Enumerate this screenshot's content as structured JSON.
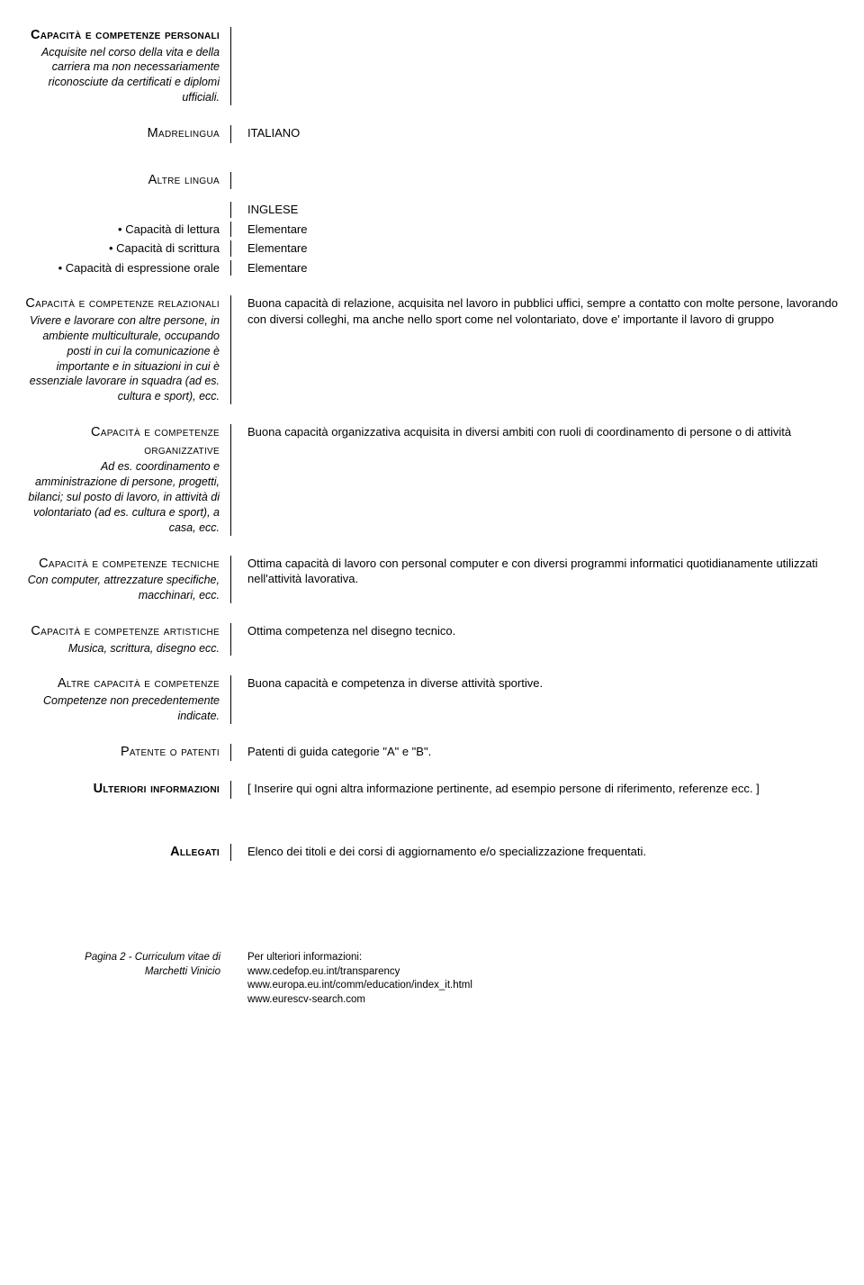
{
  "personal_skills": {
    "title": "Capacità e competenze personali",
    "desc": "Acquisite nel corso della vita e della carriera ma non necessariamente riconosciute da certificati e diplomi ufficiali."
  },
  "mother_tongue": {
    "label": "Madrelingua",
    "value": "ITALIANO"
  },
  "other_languages": {
    "label": "Altre lingua",
    "lang_name": "INGLESE",
    "reading_label": "• Capacità di lettura",
    "reading_value": "Elementare",
    "writing_label": "• Capacità di scrittura",
    "writing_value": "Elementare",
    "speaking_label": "• Capacità di espressione orale",
    "speaking_value": "Elementare"
  },
  "relational": {
    "title": "Capacità e competenze relazionali",
    "desc": "Vivere e lavorare con altre persone, in ambiente multiculturale, occupando posti in cui la comunicazione è importante e in situazioni in cui è essenziale lavorare in squadra (ad es. cultura e sport), ecc.",
    "value": "Buona capacità di relazione, acquisita nel lavoro in pubblici uffici, sempre a  contatto con molte persone, lavorando con diversi colleghi, ma anche nello sport come  nel volontariato, dove e' importante il lavoro di gruppo"
  },
  "organizational": {
    "title": "Capacità e competenze organizzative",
    "desc": "Ad es. coordinamento e amministrazione di persone, progetti, bilanci; sul posto di lavoro, in attività di volontariato (ad es. cultura e sport), a casa, ecc.",
    "value": "Buona capacità organizzativa acquisita in diversi ambiti con ruoli di coordinamento di persone o di attività"
  },
  "technical": {
    "title": "Capacità e competenze tecniche",
    "desc": "Con computer, attrezzature specifiche, macchinari, ecc.",
    "value": "Ottima capacità di lavoro con personal computer e con diversi programmi informatici quotidianamente utilizzati nell'attività lavorativa."
  },
  "artistic": {
    "title": "Capacità e competenze artistiche",
    "desc": "Musica, scrittura, disegno ecc.",
    "value": "Ottima competenza nel disegno tecnico."
  },
  "other_skills": {
    "title": "Altre capacità e competenze",
    "desc": "Competenze non precedentemente indicate.",
    "value": "Buona capacità e competenza in diverse attività sportive."
  },
  "license": {
    "title": "Patente o patenti",
    "value": "Patenti di guida categorie \"A\" e \"B\"."
  },
  "additional_info": {
    "title": "Ulteriori informazioni",
    "value": "[ Inserire qui ogni altra informazione pertinente, ad esempio persone di riferimento, referenze ecc. ]"
  },
  "attachments": {
    "title": "Allegati",
    "value": "Elenco dei titoli e dei corsi di aggiornamento e/o specializzazione frequentati."
  },
  "footer": {
    "page_info_1": "Pagina 2 - Curriculum vitae di",
    "page_info_2": "Marchetti Vinicio",
    "info_label": "Per ulteriori informazioni:",
    "url1": "www.cedefop.eu.int/transparency",
    "url2": "www.europa.eu.int/comm/education/index_it.html",
    "url3": "www.eurescv-search.com"
  }
}
